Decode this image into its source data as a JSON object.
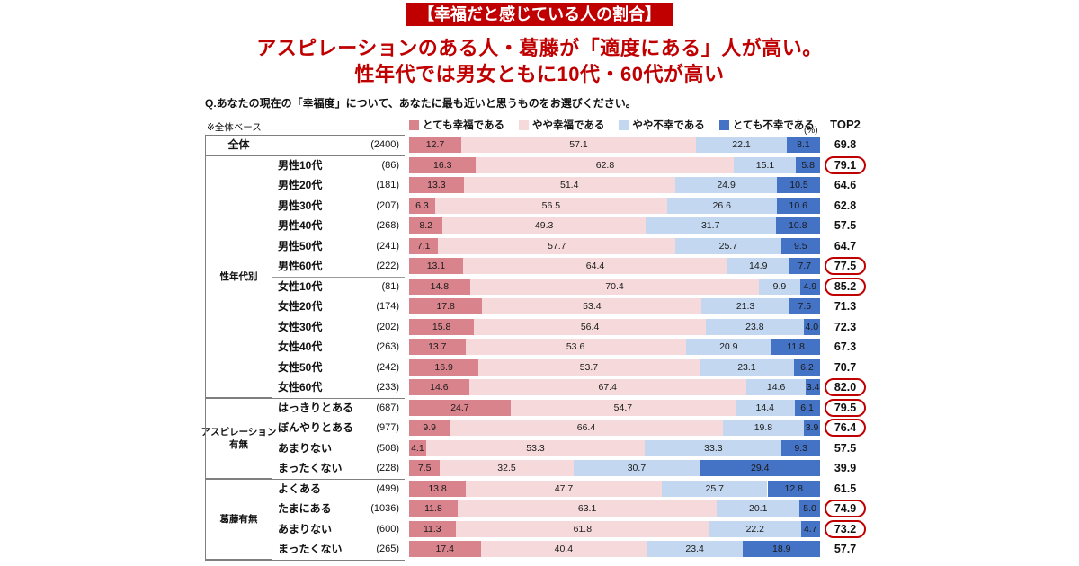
{
  "banner": {
    "title": "【幸福だと感じている人の割合】"
  },
  "headline": {
    "line1": "アスピレーションのある人・葛藤が「適度にある」人が高い。",
    "line2": "性年代では男女ともに10代・60代が高い"
  },
  "question": "Q.あなたの現在の「幸福度」について、あなたに最も近いと思うものをお選びください。",
  "base_note": "※全体ベース",
  "unit_label": "(%)",
  "top2_label": "TOP2",
  "colors": {
    "accent_red": "#c00000",
    "segments": [
      "#d9838d",
      "#f6dadb",
      "#c3d8f0",
      "#4472c4"
    ]
  },
  "chart_data": {
    "type": "bar",
    "stacked": true,
    "orientation": "horizontal",
    "unit": "%",
    "xlim": [
      0,
      100
    ],
    "legend": [
      "とても幸福である",
      "やや幸福である",
      "やや不幸である",
      "とても不幸である"
    ],
    "top2_column": "TOP2",
    "groups": [
      {
        "name": "",
        "rows": [
          {
            "label": "全体",
            "n": "(2400)",
            "values": [
              "12.7",
              "57.1",
              "22.1",
              "8.1"
            ],
            "top2": "69.8",
            "highlight": false
          }
        ]
      },
      {
        "name": "性年代別",
        "rows": [
          {
            "label": "男性10代",
            "n": "(86)",
            "values": [
              "16.3",
              "62.8",
              "15.1",
              "5.8"
            ],
            "top2": "79.1",
            "highlight": true
          },
          {
            "label": "男性20代",
            "n": "(181)",
            "values": [
              "13.3",
              "51.4",
              "24.9",
              "10.5"
            ],
            "top2": "64.6",
            "highlight": false
          },
          {
            "label": "男性30代",
            "n": "(207)",
            "values": [
              "6.3",
              "56.5",
              "26.6",
              "10.6"
            ],
            "top2": "62.8",
            "highlight": false
          },
          {
            "label": "男性40代",
            "n": "(268)",
            "values": [
              "8.2",
              "49.3",
              "31.7",
              "10.8"
            ],
            "top2": "57.5",
            "highlight": false
          },
          {
            "label": "男性50代",
            "n": "(241)",
            "values": [
              "7.1",
              "57.7",
              "25.7",
              "9.5"
            ],
            "top2": "64.7",
            "highlight": false
          },
          {
            "label": "男性60代",
            "n": "(222)",
            "values": [
              "13.1",
              "64.4",
              "14.9",
              "7.7"
            ],
            "top2": "77.5",
            "highlight": true
          },
          {
            "label": "女性10代",
            "n": "(81)",
            "values": [
              "14.8",
              "70.4",
              "9.9",
              "4.9"
            ],
            "top2": "85.2",
            "highlight": true
          },
          {
            "label": "女性20代",
            "n": "(174)",
            "values": [
              "17.8",
              "53.4",
              "21.3",
              "7.5"
            ],
            "top2": "71.3",
            "highlight": false
          },
          {
            "label": "女性30代",
            "n": "(202)",
            "values": [
              "15.8",
              "56.4",
              "23.8",
              "4.0"
            ],
            "top2": "72.3",
            "highlight": false
          },
          {
            "label": "女性40代",
            "n": "(263)",
            "values": [
              "13.7",
              "53.6",
              "20.9",
              "11.8"
            ],
            "top2": "67.3",
            "highlight": false
          },
          {
            "label": "女性50代",
            "n": "(242)",
            "values": [
              "16.9",
              "53.7",
              "23.1",
              "6.2"
            ],
            "top2": "70.7",
            "highlight": false
          },
          {
            "label": "女性60代",
            "n": "(233)",
            "values": [
              "14.6",
              "67.4",
              "14.6",
              "3.4"
            ],
            "top2": "82.0",
            "highlight": true
          }
        ]
      },
      {
        "name": "アスピレーション\n有無",
        "rows": [
          {
            "label": "はっきりとある",
            "n": "(687)",
            "values": [
              "24.7",
              "54.7",
              "14.4",
              "6.1"
            ],
            "top2": "79.5",
            "highlight": true
          },
          {
            "label": "ぼんやりとある",
            "n": "(977)",
            "values": [
              "9.9",
              "66.4",
              "19.8",
              "3.9"
            ],
            "top2": "76.4",
            "highlight": true
          },
          {
            "label": "あまりない",
            "n": "(508)",
            "values": [
              "4.1",
              "53.3",
              "33.3",
              "9.3"
            ],
            "top2": "57.5",
            "highlight": false
          },
          {
            "label": "まったくない",
            "n": "(228)",
            "values": [
              "7.5",
              "32.5",
              "30.7",
              "29.4"
            ],
            "top2": "39.9",
            "highlight": false
          }
        ]
      },
      {
        "name": "葛藤有無",
        "rows": [
          {
            "label": "よくある",
            "n": "(499)",
            "values": [
              "13.8",
              "47.7",
              "25.7",
              "12.8"
            ],
            "top2": "61.5",
            "highlight": false
          },
          {
            "label": "たまにある",
            "n": "(1036)",
            "values": [
              "11.8",
              "63.1",
              "20.1",
              "5.0"
            ],
            "top2": "74.9",
            "highlight": true
          },
          {
            "label": "あまりない",
            "n": "(600)",
            "values": [
              "11.3",
              "61.8",
              "22.2",
              "4.7"
            ],
            "top2": "73.2",
            "highlight": true
          },
          {
            "label": "まったくない",
            "n": "(265)",
            "values": [
              "17.4",
              "40.4",
              "23.4",
              "18.9"
            ],
            "top2": "57.7",
            "highlight": false
          }
        ]
      }
    ]
  }
}
